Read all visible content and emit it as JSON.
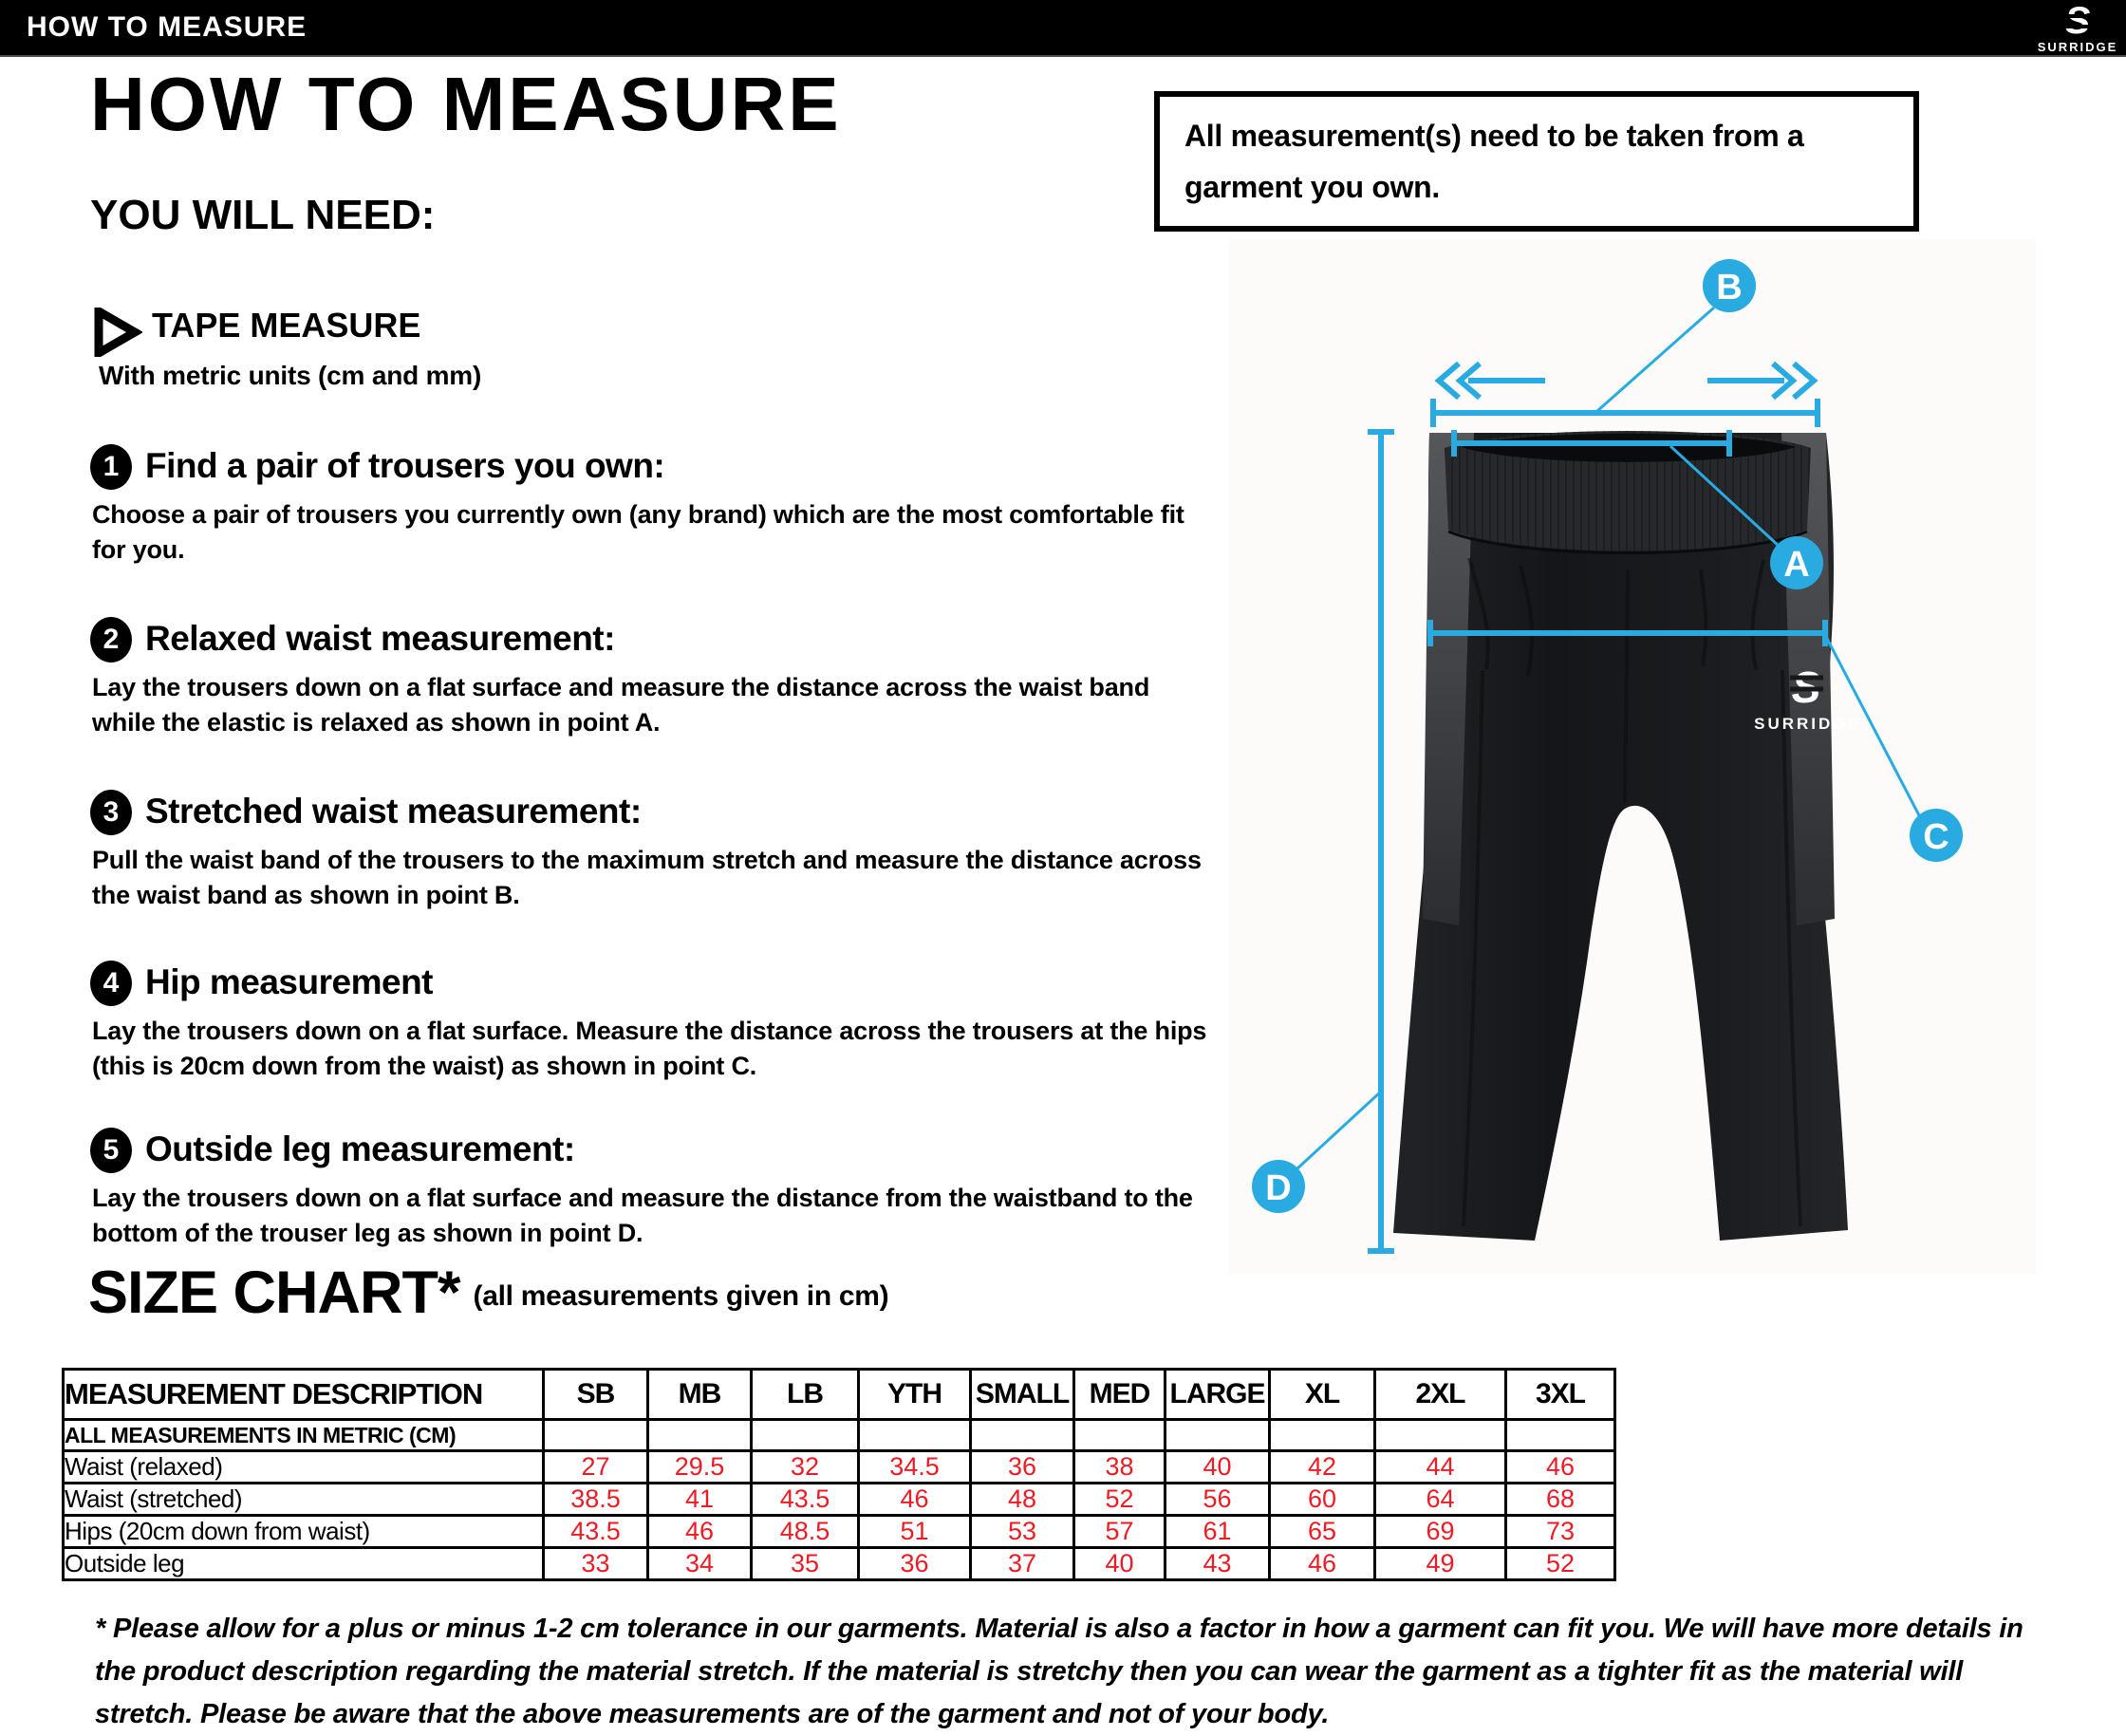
{
  "top_bar": {
    "title": "HOW TO MEASURE",
    "brand": "SURRIDGE",
    "brand_mark": "S"
  },
  "header": {
    "title": "HOW TO MEASURE",
    "you_will_need": "YOU WILL NEED:",
    "notice": "All measurement(s) need to be taken from a garment you own."
  },
  "tool": {
    "name": "TAPE MEASURE",
    "detail": "With metric units (cm and mm)"
  },
  "steps": [
    {
      "num": "1",
      "heading": "Find a pair of trousers you own:",
      "body": "Choose a pair of trousers you currently own (any brand) which are the most comfortable fit for you."
    },
    {
      "num": "2",
      "heading": "Relaxed waist measurement:",
      "body": "Lay the trousers down on a flat surface and measure the distance across the waist band while the elastic is relaxed as shown in point A."
    },
    {
      "num": "3",
      "heading": "Stretched waist measurement:",
      "body": "Pull the waist band of the trousers to the maximum stretch and measure the distance across the waist band as shown in point B."
    },
    {
      "num": "4",
      "heading": "Hip measurement",
      "body": "Lay the trousers down on a flat surface. Measure the distance across the trousers at the hips (this is 20cm down from the waist)  as shown in point C."
    },
    {
      "num": "5",
      "heading": "Outside leg measurement:",
      "body": "Lay the trousers down on a flat surface and measure the distance from the waistband to the bottom of the trouser  leg as shown in point D."
    }
  ],
  "size_chart": {
    "title": "SIZE CHART*",
    "subtitle": "(all measurements given in cm)",
    "value_color": "#ED1C24",
    "table": {
      "header": [
        "MEASUREMENT DESCRIPTION",
        "SB",
        "MB",
        "LB",
        "YTH",
        "SMALL",
        "MED",
        "LARGE",
        "XL",
        "2XL",
        "3XL"
      ],
      "note_row": "ALL MEASUREMENTS IN METRIC (CM)",
      "rows": [
        {
          "label": "Waist (relaxed)",
          "values": [
            "27",
            "29.5",
            "32",
            "34.5",
            "36",
            "38",
            "40",
            "42",
            "44",
            "46"
          ]
        },
        {
          "label": "Waist (stretched)",
          "values": [
            "38.5",
            "41",
            "43.5",
            "46",
            "48",
            "52",
            "56",
            "60",
            "64",
            "68"
          ]
        },
        {
          "label": "Hips (20cm down from waist)",
          "values": [
            "43.5",
            "46",
            "48.5",
            "51",
            "53",
            "57",
            "61",
            "65",
            "69",
            "73"
          ]
        },
        {
          "label": "Outside leg",
          "values": [
            "33",
            "34",
            "35",
            "36",
            "37",
            "40",
            "43",
            "46",
            "49",
            "52"
          ]
        }
      ]
    }
  },
  "footnote": "* Please allow for a plus or minus 1-2 cm tolerance in our garments. Material is also a factor in how a garment can fit you. We will have more details in the product description regarding the material stretch.  If the material is stretchy then you can wear the garment as a tighter fit as the material will stretch.  Please be aware that the above measurements are of the garment and not of your body.",
  "diagram": {
    "accent_color": "#29ABE2",
    "garment": "tracksuit trousers",
    "brand_mark": "S",
    "brand": "SURRIDGE",
    "points": [
      {
        "label": "A",
        "meaning": "relaxed waist"
      },
      {
        "label": "B",
        "meaning": "stretched waist"
      },
      {
        "label": "C",
        "meaning": "hips"
      },
      {
        "label": "D",
        "meaning": "outside leg"
      }
    ]
  }
}
